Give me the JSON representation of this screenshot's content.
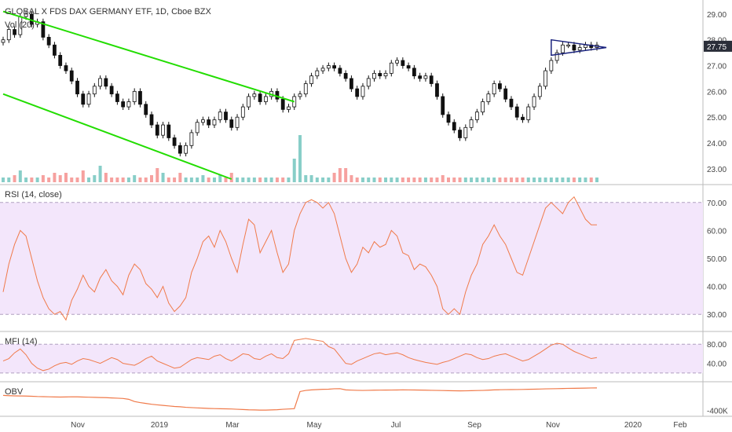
{
  "header": {
    "title": "GLOBAL X FDS DAX GERMANY ETF, 1D, Cboe BZX",
    "volume_label": "Vol (20)"
  },
  "colors": {
    "up": "#26a69a",
    "down": "#ef5350",
    "candle_body": "#111111",
    "trendline": "#22dd00",
    "oscillator": "#f07a4a",
    "band_fill": "#f3e6fb",
    "band_line": "#b0a0c0",
    "triangle": "#1a237e",
    "price_badge_bg": "#2a2e39",
    "price_badge_fg": "#ffffff"
  },
  "chart_data": [
    {
      "type": "candlestick",
      "name": "price-panel",
      "y_ticks": [
        "29.00",
        "28.00",
        "27.75",
        "27.00",
        "26.00",
        "25.00",
        "24.00",
        "23.00"
      ],
      "ylim": [
        22.6,
        29.3
      ],
      "last_price": "27.75",
      "x_ticks": [
        "Nov",
        "2019",
        "Mar",
        "May",
        "Jul",
        "Sep",
        "Nov",
        "2020",
        "Feb"
      ],
      "close": [
        28.0,
        28.4,
        28.2,
        28.9,
        29.0,
        28.6,
        28.7,
        28.1,
        27.8,
        27.4,
        27.0,
        26.8,
        26.4,
        25.9,
        25.5,
        25.9,
        26.2,
        26.5,
        26.2,
        25.9,
        25.6,
        25.4,
        25.6,
        26.0,
        25.5,
        25.1,
        24.7,
        24.3,
        24.7,
        24.2,
        23.9,
        23.6,
        23.9,
        24.4,
        24.8,
        24.9,
        24.7,
        24.9,
        25.2,
        24.9,
        24.6,
        25.0,
        25.4,
        25.8,
        25.9,
        25.6,
        25.8,
        26.0,
        25.7,
        25.3,
        25.4,
        25.8,
        25.9,
        26.3,
        26.6,
        26.8,
        26.9,
        27.0,
        26.9,
        26.7,
        26.5,
        26.1,
        25.8,
        26.2,
        26.5,
        26.7,
        26.6,
        26.7,
        27.1,
        27.2,
        27.0,
        26.9,
        26.6,
        26.5,
        26.6,
        26.3,
        25.8,
        25.1,
        24.8,
        24.5,
        24.2,
        24.6,
        24.9,
        25.2,
        25.6,
        25.9,
        26.3,
        26.1,
        25.7,
        25.4,
        25.0,
        24.9,
        25.4,
        25.8,
        26.2,
        26.8,
        27.2,
        27.5,
        27.8,
        27.8,
        27.6,
        27.7,
        27.8,
        27.7,
        27.8
      ],
      "volume": [
        0.1,
        0.1,
        0.15,
        0.25,
        0.1,
        0.1,
        0.1,
        0.15,
        0.1,
        0.2,
        0.15,
        0.2,
        0.1,
        0.1,
        0.25,
        0.1,
        0.15,
        0.35,
        0.2,
        0.1,
        0.1,
        0.1,
        0.1,
        0.15,
        0.1,
        0.1,
        0.15,
        0.3,
        0.2,
        0.1,
        0.1,
        0.2,
        0.1,
        0.1,
        0.1,
        0.15,
        0.1,
        0.1,
        0.15,
        0.1,
        0.2,
        0.1,
        0.1,
        0.1,
        0.1,
        0.1,
        0.1,
        0.1,
        0.1,
        0.1,
        0.1,
        0.5,
        1.0,
        0.15,
        0.15,
        0.1,
        0.1,
        0.1,
        0.2,
        0.3,
        0.3,
        0.15,
        0.1,
        0.1,
        0.1,
        0.1,
        0.1,
        0.1,
        0.1,
        0.1,
        0.1,
        0.1,
        0.1,
        0.1,
        0.1,
        0.1,
        0.1,
        0.15,
        0.1,
        0.1,
        0.1,
        0.1,
        0.1,
        0.1,
        0.1,
        0.1,
        0.1,
        0.1,
        0.1,
        0.1,
        0.1,
        0.1,
        0.1,
        0.1,
        0.1,
        0.1,
        0.1,
        0.1,
        0.1,
        0.1,
        0.1,
        0.1,
        0.1,
        0.1,
        0.1
      ],
      "trendlines": [
        {
          "from": [
            0,
            29.1
          ],
          "to": [
            51,
            25.6
          ]
        },
        {
          "from": [
            0,
            25.9
          ],
          "to": [
            40,
            22.6
          ]
        }
      ],
      "triangle": {
        "apex_index": 104,
        "top": 28.0,
        "bottom": 27.4,
        "apex": 27.7,
        "start_index": 96
      }
    },
    {
      "type": "line",
      "name": "rsi-panel",
      "label": "RSI (14, close)",
      "y_ticks": [
        "70.00",
        "60.00",
        "50.00",
        "40.00",
        "30.00"
      ],
      "ylim": [
        25,
        75
      ],
      "band": [
        30,
        70
      ],
      "values": [
        38,
        48,
        55,
        60,
        58,
        50,
        42,
        36,
        32,
        30,
        31,
        28,
        35,
        39,
        44,
        40,
        38,
        43,
        46,
        42,
        40,
        37,
        44,
        48,
        46,
        41,
        39,
        36,
        40,
        34,
        31,
        33,
        36,
        45,
        50,
        56,
        58,
        54,
        60,
        56,
        50,
        45,
        55,
        64,
        62,
        52,
        56,
        60,
        52,
        45,
        48,
        60,
        66,
        70,
        71,
        70,
        68,
        70,
        66,
        58,
        50,
        45,
        48,
        54,
        52,
        56,
        54,
        55,
        60,
        58,
        52,
        51,
        46,
        48,
        47,
        44,
        40,
        32,
        30,
        32,
        30,
        38,
        44,
        48,
        55,
        58,
        62,
        58,
        55,
        50,
        45,
        44,
        50,
        56,
        62,
        68,
        70,
        68,
        66,
        70,
        72,
        68,
        64,
        62,
        62
      ]
    },
    {
      "type": "line",
      "name": "mfi-panel",
      "label": "MFI (14)",
      "y_ticks": [
        "80.00",
        "40.00"
      ],
      "ylim": [
        5,
        100
      ],
      "band": [
        20,
        80
      ],
      "values": [
        45,
        50,
        62,
        70,
        58,
        40,
        30,
        25,
        28,
        35,
        40,
        42,
        38,
        45,
        50,
        48,
        44,
        40,
        46,
        52,
        48,
        40,
        38,
        36,
        42,
        50,
        55,
        45,
        40,
        35,
        30,
        32,
        40,
        48,
        52,
        50,
        48,
        55,
        58,
        50,
        45,
        52,
        60,
        58,
        50,
        48,
        55,
        60,
        52,
        50,
        60,
        88,
        90,
        92,
        90,
        88,
        86,
        75,
        70,
        55,
        40,
        38,
        45,
        50,
        55,
        60,
        62,
        58,
        60,
        62,
        58,
        52,
        48,
        45,
        42,
        40,
        38,
        42,
        45,
        50,
        55,
        60,
        58,
        52,
        48,
        50,
        55,
        58,
        60,
        55,
        50,
        45,
        48,
        55,
        62,
        70,
        78,
        82,
        80,
        72,
        65,
        60,
        55,
        50,
        52
      ]
    },
    {
      "type": "line",
      "name": "obv-panel",
      "label": "OBV",
      "y_ticks": [
        "-400K"
      ],
      "ylim": [
        -450,
        60
      ],
      "values": [
        -130,
        -135,
        -138,
        -140,
        -142,
        -145,
        -150,
        -152,
        -155,
        -158,
        -160,
        -158,
        -155,
        -156,
        -160,
        -162,
        -165,
        -168,
        -170,
        -175,
        -180,
        -185,
        -200,
        -240,
        -260,
        -275,
        -290,
        -300,
        -310,
        -320,
        -330,
        -335,
        -345,
        -350,
        -355,
        -360,
        -365,
        -368,
        -370,
        -372,
        -375,
        -380,
        -385,
        -390,
        -392,
        -395,
        -395,
        -392,
        -388,
        -380,
        -375,
        -370,
        -60,
        -40,
        -30,
        -25,
        -20,
        -18,
        -10,
        -8,
        -30,
        -35,
        -38,
        -40,
        -38,
        -36,
        -35,
        -34,
        -33,
        -32,
        -30,
        -31,
        -32,
        -34,
        -36,
        -38,
        -40,
        -42,
        -45,
        -46,
        -48,
        -47,
        -45,
        -42,
        -40,
        -36,
        -30,
        -28,
        -26,
        -25,
        -24,
        -22,
        -20,
        -18,
        -15,
        -12,
        -10,
        -8,
        -5,
        -3,
        -2,
        0,
        2,
        4,
        5
      ]
    }
  ]
}
